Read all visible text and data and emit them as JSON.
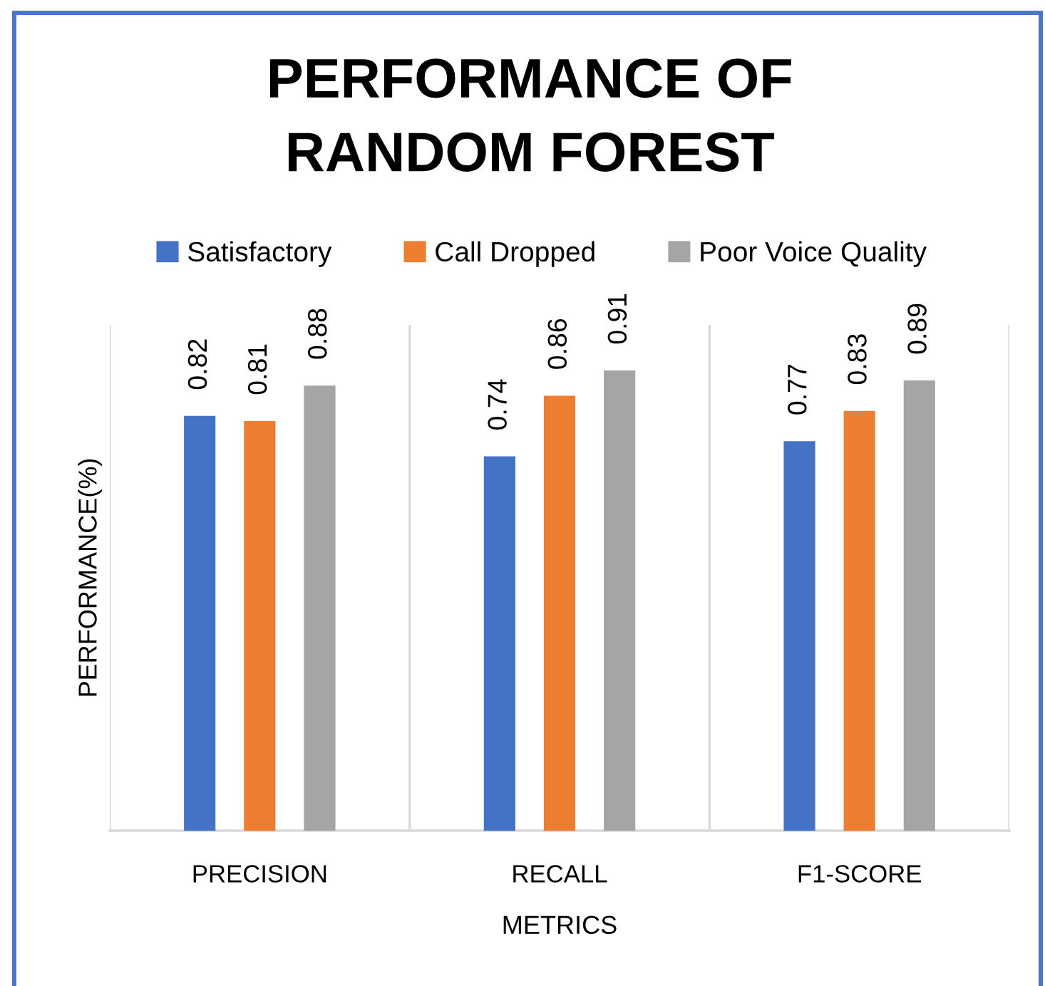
{
  "chart_data": {
    "type": "bar",
    "title": "PERFORMANCE OF\nRANDOM FOREST",
    "xlabel": "METRICS",
    "ylabel": "PERFORMANCE(%)",
    "categories": [
      "PRECISION",
      "RECALL",
      "F1-SCORE"
    ],
    "series": [
      {
        "name": "Satisfactory",
        "color": "#4472c4",
        "values": [
          0.82,
          0.74,
          0.77
        ]
      },
      {
        "name": "Call Dropped",
        "color": "#ed7d31",
        "values": [
          0.81,
          0.86,
          0.83
        ]
      },
      {
        "name": "Poor Voice Quality",
        "color": "#a5a5a5",
        "values": [
          0.88,
          0.91,
          0.89
        ]
      }
    ],
    "ylim": [
      0,
      1
    ],
    "tick_labels": "x",
    "grid": "x",
    "legend": "top",
    "data_labels": true
  }
}
